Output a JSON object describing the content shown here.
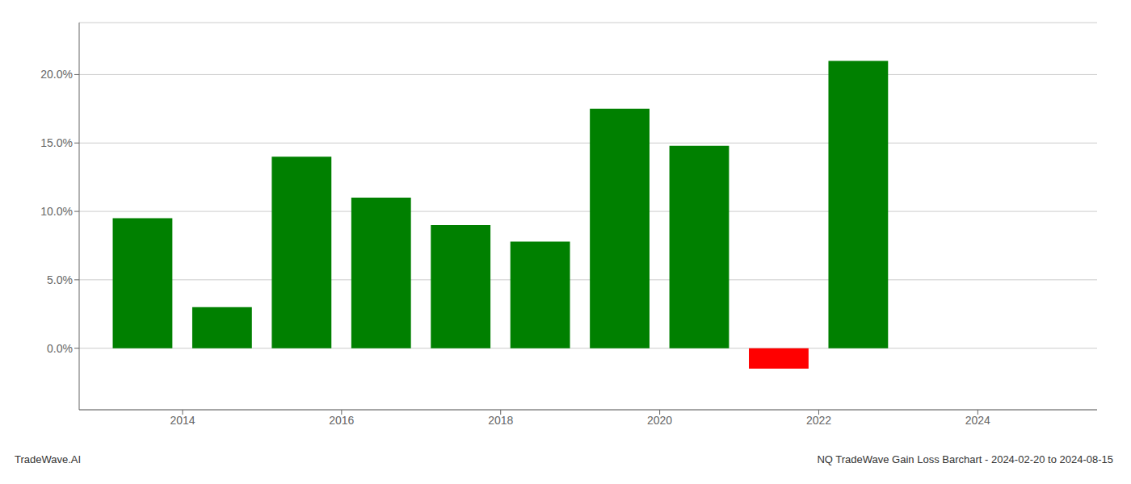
{
  "chart_data": {
    "type": "bar",
    "x": [
      2013,
      2014,
      2015,
      2016,
      2017,
      2018,
      2019,
      2020,
      2021,
      2022
    ],
    "values": [
      0.095,
      0.03,
      0.14,
      0.11,
      0.09,
      0.078,
      0.175,
      0.148,
      -0.015,
      0.21
    ],
    "colors": [
      "#008000",
      "#008000",
      "#008000",
      "#008000",
      "#008000",
      "#008000",
      "#008000",
      "#008000",
      "#ff0000",
      "#008000"
    ],
    "xlim": [
      2012.2,
      2025.0
    ],
    "xticks": [
      {
        "value": 2013.5,
        "label": "2014"
      },
      {
        "value": 2015.5,
        "label": "2016"
      },
      {
        "value": 2017.5,
        "label": "2018"
      },
      {
        "value": 2019.5,
        "label": "2020"
      },
      {
        "value": 2021.5,
        "label": "2022"
      },
      {
        "value": 2023.5,
        "label": "2024"
      }
    ],
    "ylim": [
      -0.045,
      0.238
    ],
    "yticks": [
      {
        "value": 0.0,
        "label": "0.0%"
      },
      {
        "value": 0.05,
        "label": "5.0%"
      },
      {
        "value": 0.1,
        "label": "10.0%"
      },
      {
        "value": 0.15,
        "label": "15.0%"
      },
      {
        "value": 0.2,
        "label": "20.0%"
      }
    ],
    "grid": true,
    "annotations": [
      "TradeWave.AI",
      "NQ TradeWave Gain Loss Barchart - 2024-02-20 to 2024-08-15"
    ]
  }
}
